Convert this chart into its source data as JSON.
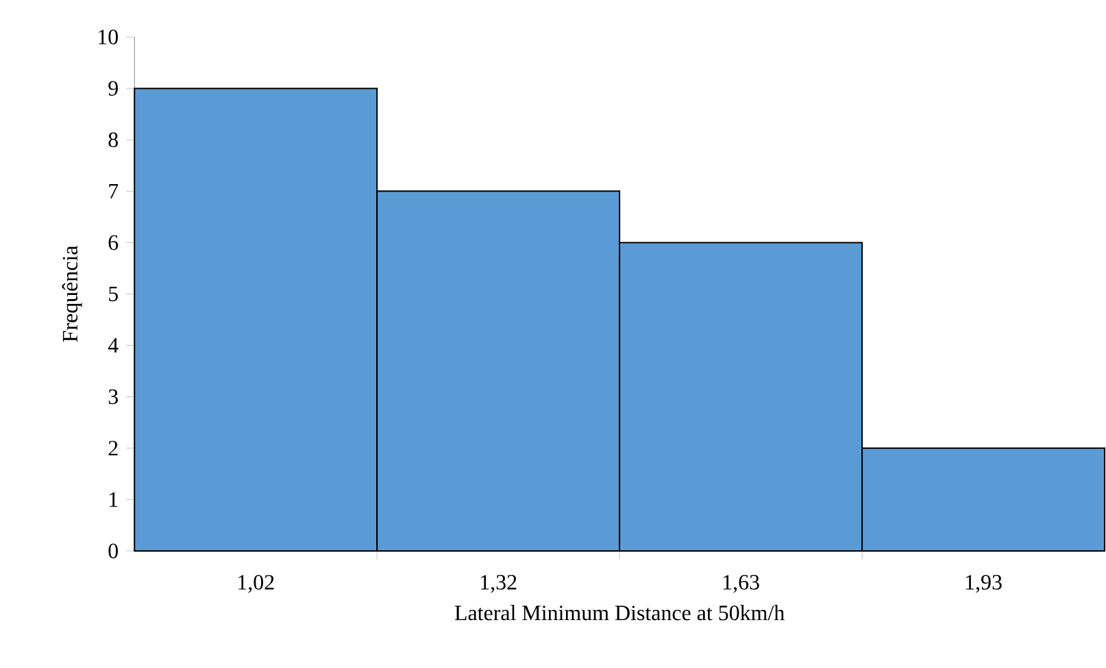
{
  "chart_data": {
    "type": "bar",
    "xlabel": "Lateral Minimum Distance at 50km/h",
    "ylabel": "Frequência",
    "categories": [
      "1,02",
      "1,32",
      "1,63",
      "1,93"
    ],
    "values": [
      9,
      7,
      6,
      2
    ],
    "color": "#5b9bd5",
    "ylim": [
      0,
      10
    ],
    "yticks": [
      0,
      1,
      2,
      3,
      4,
      5,
      6,
      7,
      8,
      9,
      10
    ]
  }
}
